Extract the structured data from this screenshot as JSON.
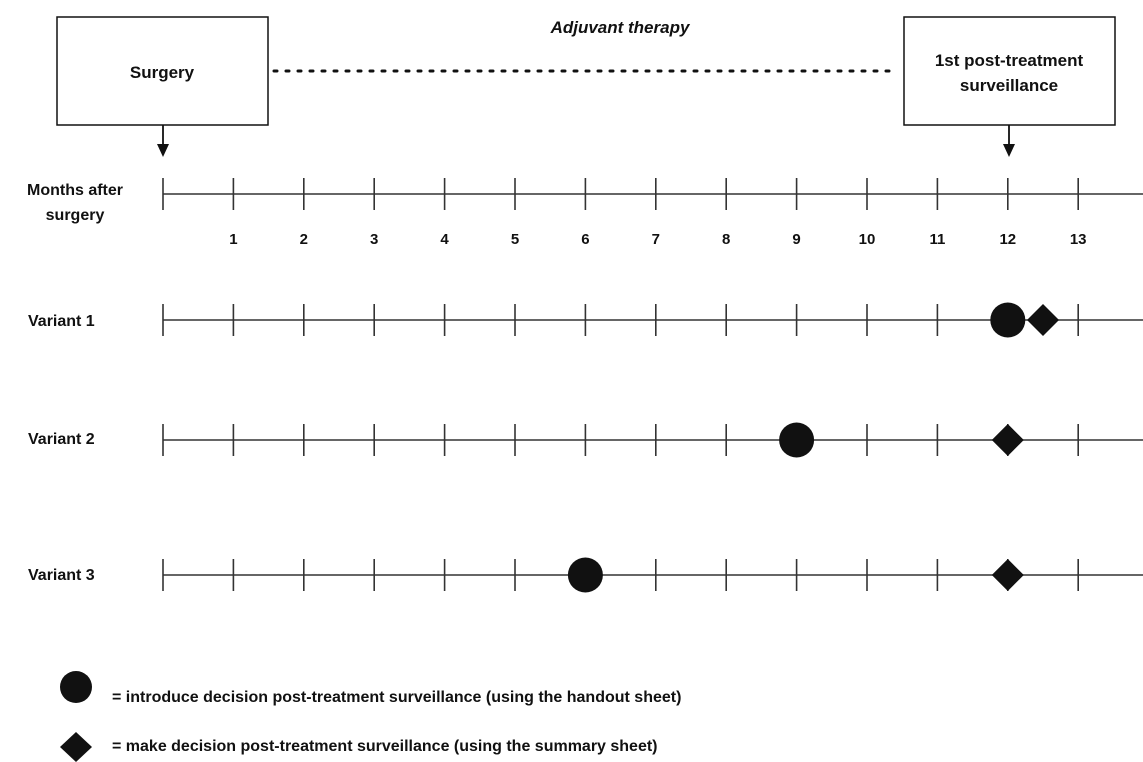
{
  "header": {
    "surgery_box": "Surgery",
    "phase_label": "Adjuvant therapy",
    "surveillance_box": [
      "1st post-treatment",
      "surveillance"
    ]
  },
  "axis": {
    "label_lines": [
      "Months after",
      "surgery"
    ],
    "months_shown": 13
  },
  "variants": [
    {
      "label": "Variant 1",
      "introduce_month": 12,
      "decide_month": 12.5
    },
    {
      "label": "Variant 2",
      "introduce_month": 9,
      "decide_month": 12
    },
    {
      "label": "Variant 3",
      "introduce_month": 6,
      "decide_month": 12
    }
  ],
  "legend": {
    "circle_text": "= introduce decision post-treatment surveillance (using the handout sheet)",
    "diamond_text": "= make decision post-treatment surveillance (using the summary sheet)"
  }
}
